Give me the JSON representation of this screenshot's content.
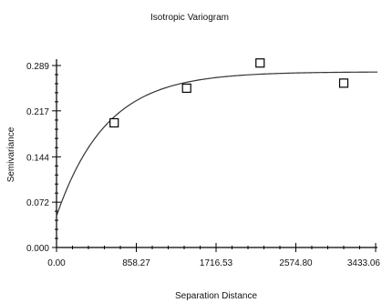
{
  "chart_data": {
    "type": "scatter",
    "title": "Isotropic Variogram",
    "xlabel": "Separation Distance",
    "ylabel": "Semivariance",
    "xlim": [
      0,
      3433.06
    ],
    "ylim": [
      0,
      0.289
    ],
    "x_ticks": [
      "0.00",
      "858.27",
      "1716.53",
      "2574.80",
      "3433.06"
    ],
    "y_ticks": [
      "0.000",
      "0.072",
      "0.144",
      "0.217",
      "0.289"
    ],
    "grid": false,
    "legend": "none",
    "points": {
      "x": [
        620,
        1400,
        2190,
        3090
      ],
      "y": [
        0.198,
        0.253,
        0.293,
        0.261
      ]
    },
    "model": {
      "type": "exponential",
      "nugget": 0.05,
      "sill": 0.279,
      "range": 1600
    }
  }
}
